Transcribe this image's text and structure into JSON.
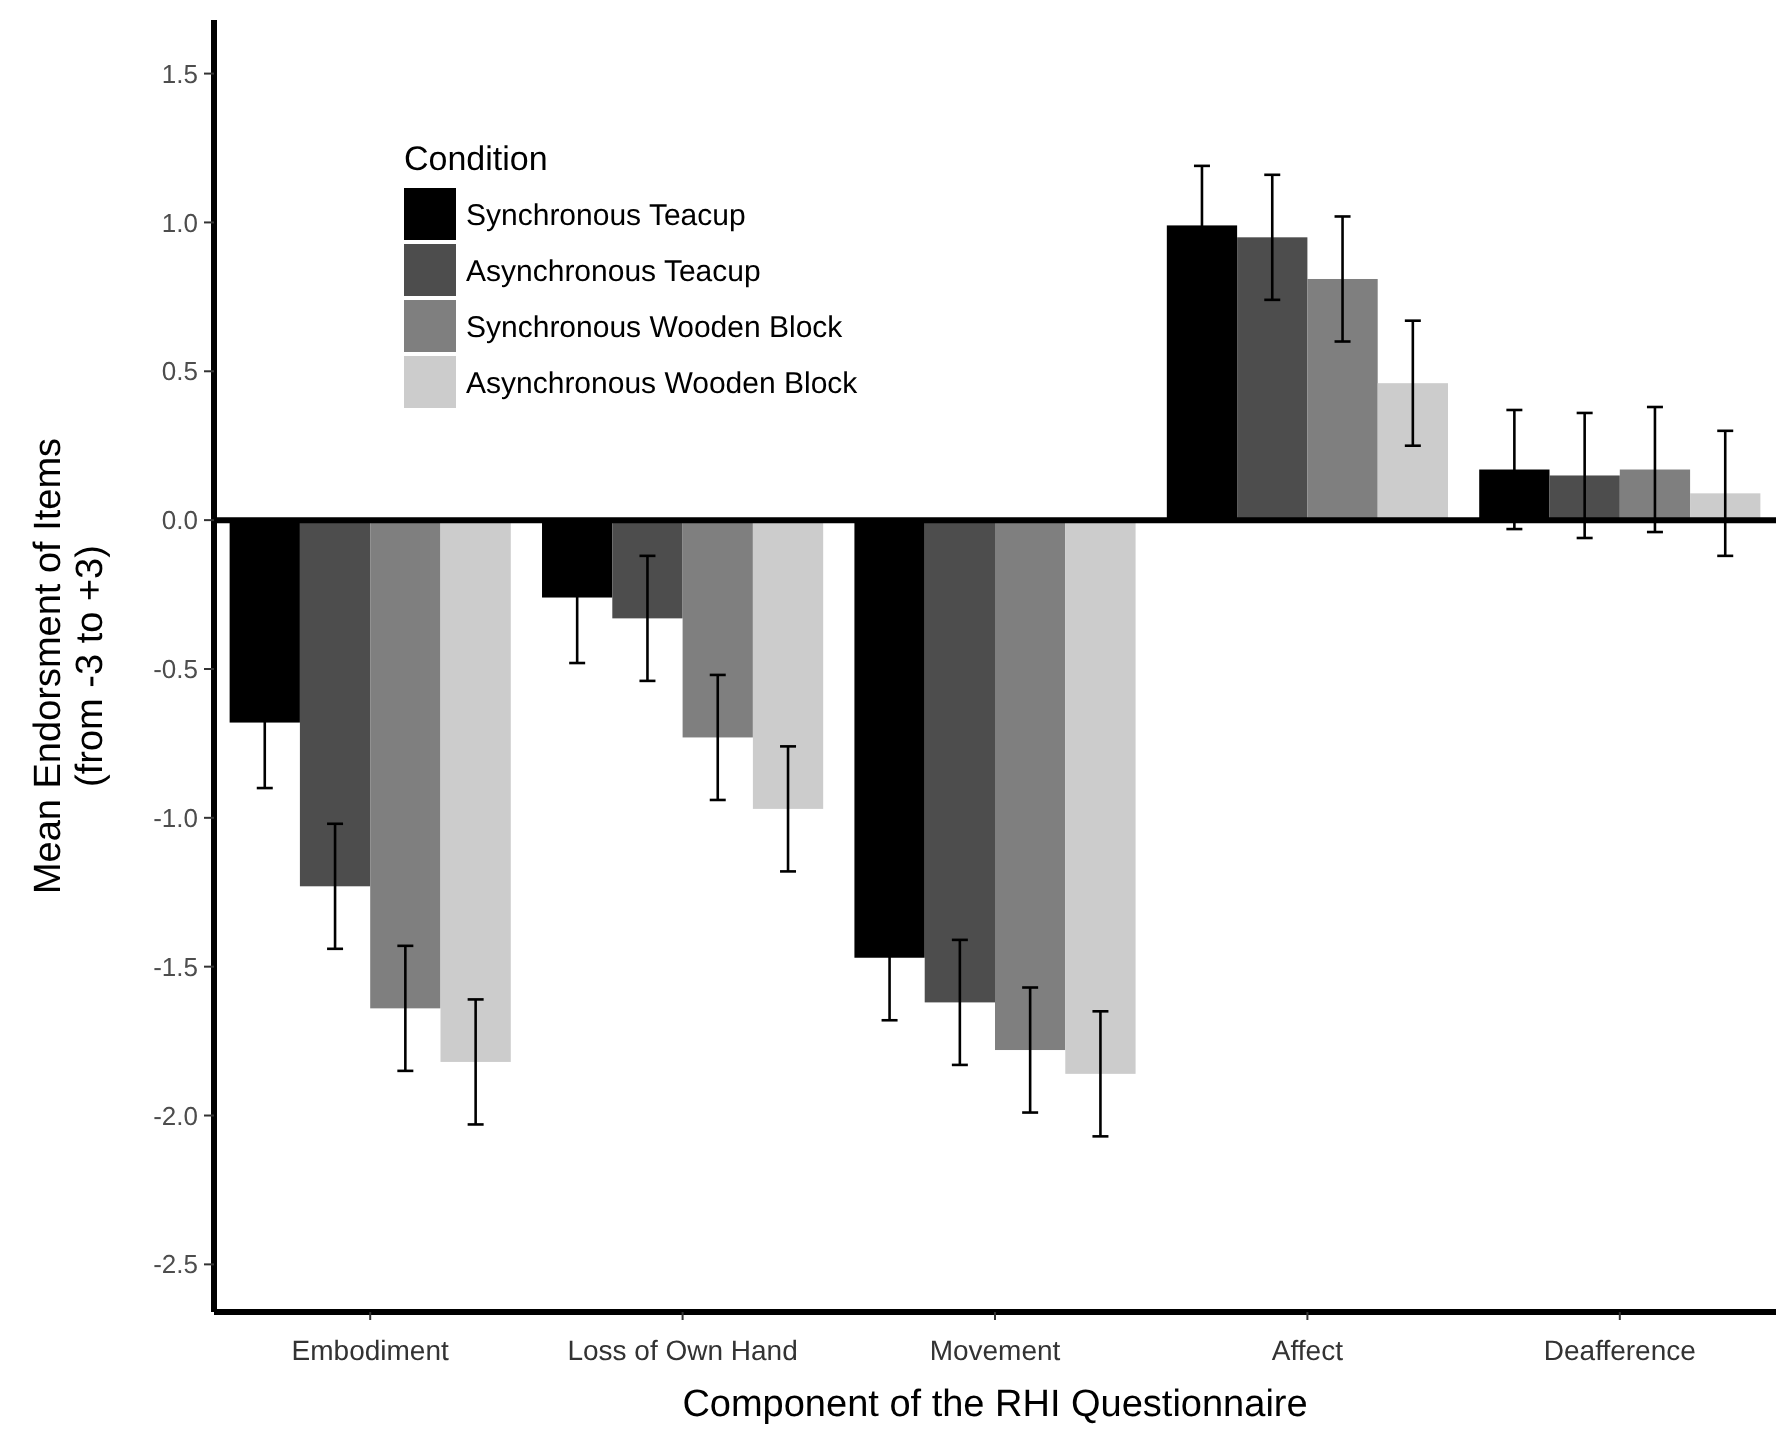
{
  "chart_data": {
    "type": "bar",
    "xlabel": "Component of the RHI Questionnaire",
    "ylabel": "Mean Endorsment of Items\n(from -3 to +3)",
    "legend_title": "Condition",
    "legend": "top left",
    "grid": false,
    "categories": [
      "Embodiment",
      "Loss of Own Hand",
      "Movement",
      "Affect",
      "Deafference"
    ],
    "ylim": [
      -2.66,
      1.68
    ],
    "yticks": [
      {
        "value": 1.5,
        "label": "1.5"
      },
      {
        "value": 1,
        "label": "1.0"
      },
      {
        "value": 0.5,
        "label": "0.5"
      },
      {
        "value": 0,
        "label": "0.0"
      },
      {
        "value": -0.5,
        "label": "-0.5"
      },
      {
        "value": -1,
        "label": "-1.0"
      },
      {
        "value": -1.5,
        "label": "-1.5"
      },
      {
        "value": -2,
        "label": "-2.0"
      },
      {
        "value": -2.5,
        "label": "-2.5"
      }
    ],
    "ref_lines": [
      {
        "axis": "y",
        "value": 0,
        "color": "#000000"
      }
    ],
    "series": [
      {
        "name": "Synchronous Teacup",
        "color": "#000000",
        "values": [
          -0.68,
          -0.26,
          -1.47,
          0.99,
          0.17
        ],
        "errors": [
          0.22,
          0.22,
          0.21,
          0.2,
          0.2
        ]
      },
      {
        "name": "Asynchronous Teacup",
        "color": "#4d4d4d",
        "values": [
          -1.23,
          -0.33,
          -1.62,
          0.95,
          0.15
        ],
        "errors": [
          0.21,
          0.21,
          0.21,
          0.21,
          0.21
        ]
      },
      {
        "name": "Synchronous Wooden Block",
        "color": "#7f7f7f",
        "values": [
          -1.64,
          -0.73,
          -1.78,
          0.81,
          0.17
        ],
        "errors": [
          0.21,
          0.21,
          0.21,
          0.21,
          0.21
        ]
      },
      {
        "name": "Asynchronous Wooden Block",
        "color": "#cccccc",
        "values": [
          -1.82,
          -0.97,
          -1.86,
          0.46,
          0.09
        ],
        "errors": [
          0.21,
          0.21,
          0.21,
          0.21,
          0.21
        ]
      }
    ]
  }
}
